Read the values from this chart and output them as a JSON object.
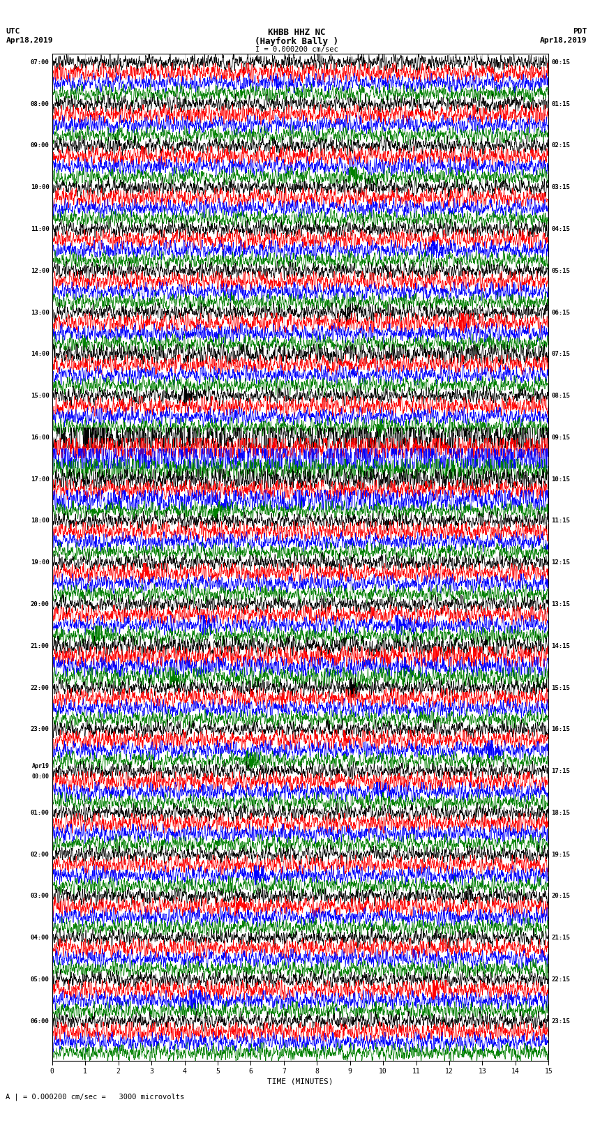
{
  "title_line1": "KHBB HHZ NC",
  "title_line2": "(Hayfork Bally )",
  "scale_label": "I = 0.000200 cm/sec",
  "scale_note": "A | = 0.000200 cm/sec =   3000 microvolts",
  "left_header_line1": "UTC",
  "left_header_line2": "Apr18,2019",
  "right_header_line1": "PDT",
  "right_header_line2": "Apr18,2019",
  "xlabel": "TIME (MINUTES)",
  "left_times": [
    "07:00",
    "08:00",
    "09:00",
    "10:00",
    "11:00",
    "12:00",
    "13:00",
    "14:00",
    "15:00",
    "16:00",
    "17:00",
    "18:00",
    "19:00",
    "20:00",
    "21:00",
    "22:00",
    "23:00",
    "Apr19\n00:00",
    "01:00",
    "02:00",
    "03:00",
    "04:00",
    "05:00",
    "06:00"
  ],
  "right_times": [
    "00:15",
    "01:15",
    "02:15",
    "03:15",
    "04:15",
    "05:15",
    "06:15",
    "07:15",
    "08:15",
    "09:15",
    "10:15",
    "11:15",
    "12:15",
    "13:15",
    "14:15",
    "15:15",
    "16:15",
    "17:15",
    "18:15",
    "19:15",
    "20:15",
    "21:15",
    "22:15",
    "23:15"
  ],
  "n_hour_blocks": 24,
  "n_minutes": 15,
  "colors": [
    "black",
    "red",
    "blue",
    "green"
  ],
  "fig_width": 8.5,
  "fig_height": 16.13,
  "bg_color": "white",
  "line_width": 0.5,
  "amplitude_scale": 0.38
}
